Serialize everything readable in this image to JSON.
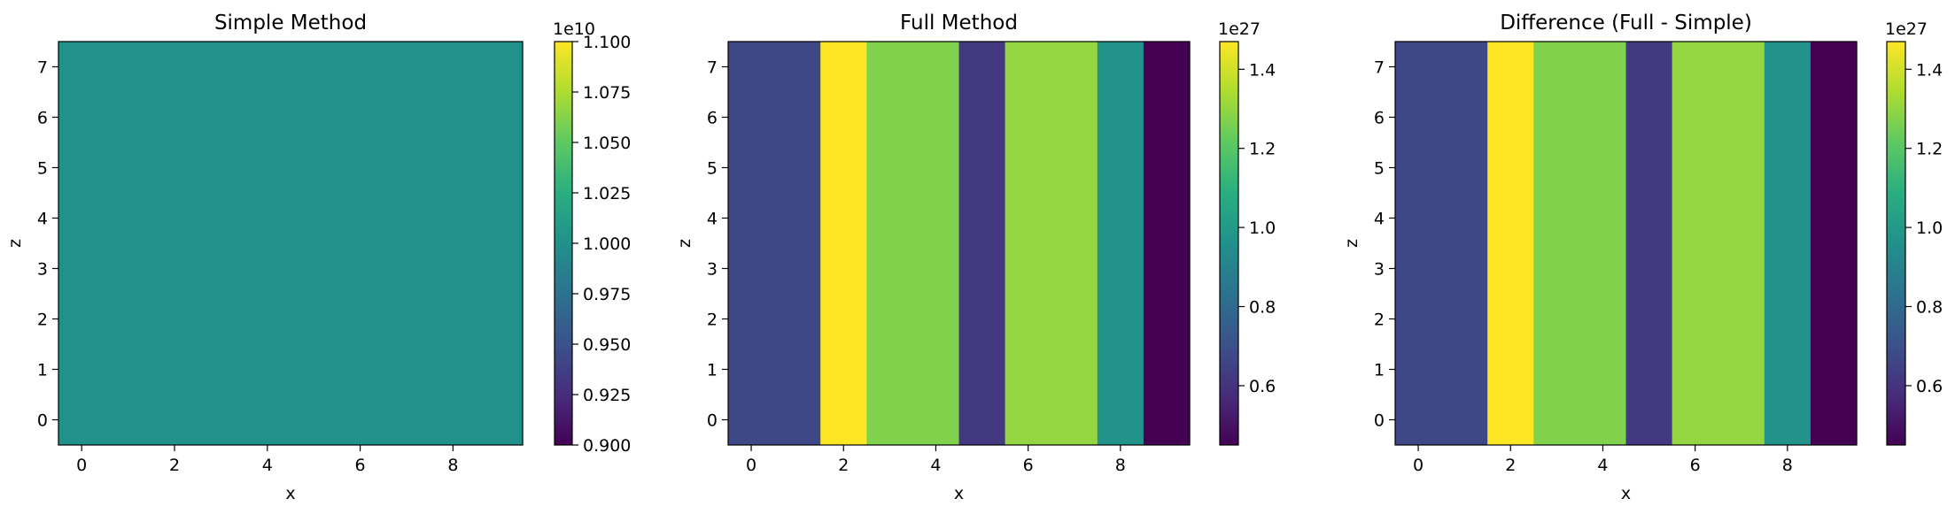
{
  "chart_data": [
    {
      "type": "heatmap",
      "title": "Simple Method",
      "xlabel": "x",
      "ylabel": "z",
      "x_ticks": [
        "0",
        "2",
        "4",
        "6",
        "8"
      ],
      "y_ticks": [
        "0",
        "1",
        "2",
        "3",
        "4",
        "5",
        "6",
        "7"
      ],
      "xlim": [
        -0.5,
        9.5
      ],
      "ylim": [
        -0.5,
        7.5
      ],
      "colormap": "viridis",
      "column_values": [
        10000000000.0,
        10000000000.0,
        10000000000.0,
        10000000000.0,
        10000000000.0,
        10000000000.0,
        10000000000.0,
        10000000000.0,
        10000000000.0,
        10000000000.0
      ],
      "rows": 8,
      "colorbar": {
        "range": [
          0.9,
          1.1
        ],
        "multiplier": "1e10",
        "ticks": [
          "0.900",
          "0.925",
          "0.950",
          "0.975",
          "1.000",
          "1.025",
          "1.050",
          "1.075",
          "1.100"
        ]
      }
    },
    {
      "type": "heatmap",
      "title": "Full Method",
      "xlabel": "x",
      "ylabel": "z",
      "x_ticks": [
        "0",
        "2",
        "4",
        "6",
        "8"
      ],
      "y_ticks": [
        "0",
        "1",
        "2",
        "3",
        "4",
        "5",
        "6",
        "7"
      ],
      "xlim": [
        -0.5,
        9.5
      ],
      "ylim": [
        -0.5,
        7.5
      ],
      "colormap": "viridis",
      "column_values": [
        0.67,
        0.67,
        1.47,
        1.27,
        1.27,
        0.62,
        1.3,
        1.3,
        0.97,
        0.45
      ],
      "rows": 8,
      "colorbar": {
        "range": [
          0.45,
          1.47
        ],
        "multiplier": "1e27",
        "ticks": [
          "0.6",
          "0.8",
          "1.0",
          "1.2",
          "1.4"
        ]
      }
    },
    {
      "type": "heatmap",
      "title": "Difference (Full - Simple)",
      "xlabel": "x",
      "ylabel": "z",
      "x_ticks": [
        "0",
        "2",
        "4",
        "6",
        "8"
      ],
      "y_ticks": [
        "0",
        "1",
        "2",
        "3",
        "4",
        "5",
        "6",
        "7"
      ],
      "xlim": [
        -0.5,
        9.5
      ],
      "ylim": [
        -0.5,
        7.5
      ],
      "colormap": "viridis",
      "column_values": [
        0.67,
        0.67,
        1.47,
        1.27,
        1.27,
        0.62,
        1.3,
        1.3,
        0.97,
        0.45
      ],
      "rows": 8,
      "colorbar": {
        "range": [
          0.45,
          1.47
        ],
        "multiplier": "1e27",
        "ticks": [
          "0.6",
          "0.8",
          "1.0",
          "1.2",
          "1.4"
        ]
      }
    }
  ]
}
